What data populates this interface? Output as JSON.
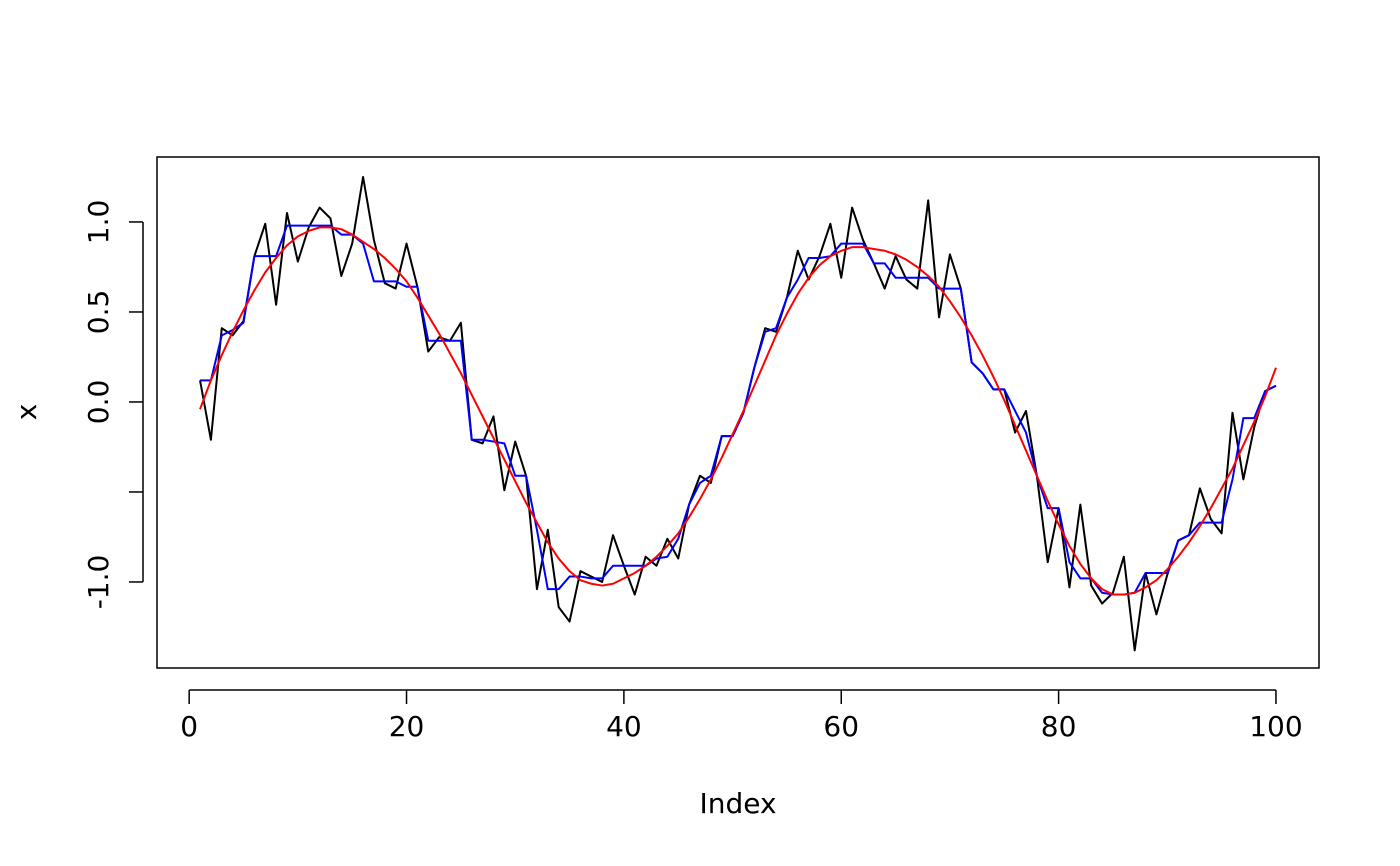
{
  "chart_data": {
    "type": "line",
    "xlabel": "Index",
    "ylabel": "x",
    "x": [
      1,
      2,
      3,
      4,
      5,
      6,
      7,
      8,
      9,
      10,
      11,
      12,
      13,
      14,
      15,
      16,
      17,
      18,
      19,
      20,
      21,
      22,
      23,
      24,
      25,
      26,
      27,
      28,
      29,
      30,
      31,
      32,
      33,
      34,
      35,
      36,
      37,
      38,
      39,
      40,
      41,
      42,
      43,
      44,
      45,
      46,
      47,
      48,
      49,
      50,
      51,
      52,
      53,
      54,
      55,
      56,
      57,
      58,
      59,
      60,
      61,
      62,
      63,
      64,
      65,
      66,
      67,
      68,
      69,
      70,
      71,
      72,
      73,
      74,
      75,
      76,
      77,
      78,
      79,
      80,
      81,
      82,
      83,
      84,
      85,
      86,
      87,
      88,
      89,
      90,
      91,
      92,
      93,
      94,
      95,
      96,
      97,
      98,
      99,
      100
    ],
    "series": [
      {
        "color": "#000000",
        "values": [
          0.12,
          -0.21,
          0.41,
          0.37,
          0.45,
          0.81,
          0.99,
          0.54,
          1.05,
          0.78,
          0.97,
          1.08,
          1.02,
          0.7,
          0.88,
          1.25,
          0.9,
          0.66,
          0.63,
          0.88,
          0.64,
          0.28,
          0.36,
          0.34,
          0.44,
          -0.21,
          -0.23,
          -0.08,
          -0.49,
          -0.22,
          -0.41,
          -1.04,
          -0.71,
          -1.14,
          -1.22,
          -0.94,
          -0.97,
          -1.0,
          -0.74,
          -0.91,
          -1.07,
          -0.86,
          -0.91,
          -0.76,
          -0.87,
          -0.57,
          -0.41,
          -0.45,
          -0.19,
          -0.19,
          -0.06,
          0.19,
          0.41,
          0.39,
          0.58,
          0.84,
          0.68,
          0.81,
          0.99,
          0.69,
          1.08,
          0.9,
          0.77,
          0.63,
          0.81,
          0.68,
          0.63,
          1.12,
          0.47,
          0.82,
          0.63,
          0.22,
          0.16,
          0.07,
          0.07,
          -0.17,
          -0.05,
          -0.41,
          -0.89,
          -0.59,
          -1.03,
          -0.57,
          -1.02,
          -1.12,
          -1.06,
          -0.86,
          -1.38,
          -0.95,
          -1.18,
          -0.96,
          -0.77,
          -0.74,
          -0.48,
          -0.65,
          -0.73,
          -0.06,
          -0.43,
          -0.14,
          0.06,
          0.09
        ]
      },
      {
        "color": "#0000ff",
        "values": [
          0.12,
          0.12,
          0.37,
          0.4,
          0.44,
          0.81,
          0.81,
          0.81,
          0.98,
          0.98,
          0.98,
          0.98,
          0.98,
          0.93,
          0.93,
          0.88,
          0.67,
          0.67,
          0.67,
          0.64,
          0.64,
          0.34,
          0.34,
          0.34,
          0.34,
          -0.21,
          -0.21,
          -0.22,
          -0.23,
          -0.41,
          -0.41,
          -0.71,
          -1.04,
          -1.04,
          -0.97,
          -0.97,
          -0.98,
          -0.98,
          -0.91,
          -0.91,
          -0.91,
          -0.91,
          -0.87,
          -0.86,
          -0.76,
          -0.57,
          -0.45,
          -0.41,
          -0.19,
          -0.19,
          -0.06,
          0.19,
          0.39,
          0.41,
          0.58,
          0.68,
          0.8,
          0.8,
          0.81,
          0.88,
          0.88,
          0.88,
          0.77,
          0.77,
          0.69,
          0.69,
          0.69,
          0.69,
          0.63,
          0.63,
          0.63,
          0.22,
          0.16,
          0.07,
          0.07,
          -0.05,
          -0.17,
          -0.41,
          -0.59,
          -0.59,
          -0.89,
          -0.98,
          -0.98,
          -1.06,
          -1.07,
          -1.07,
          -1.06,
          -0.95,
          -0.95,
          -0.95,
          -0.77,
          -0.74,
          -0.67,
          -0.67,
          -0.67,
          -0.43,
          -0.09,
          -0.09,
          0.06,
          0.09
        ]
      },
      {
        "color": "#ff0000",
        "values": [
          -0.04,
          0.12,
          0.26,
          0.39,
          0.51,
          0.62,
          0.72,
          0.8,
          0.87,
          0.92,
          0.95,
          0.97,
          0.97,
          0.96,
          0.93,
          0.89,
          0.85,
          0.8,
          0.74,
          0.67,
          0.58,
          0.48,
          0.38,
          0.27,
          0.16,
          0.04,
          -0.08,
          -0.2,
          -0.32,
          -0.44,
          -0.56,
          -0.67,
          -0.78,
          -0.87,
          -0.94,
          -0.99,
          -1.01,
          -1.02,
          -1.01,
          -0.98,
          -0.95,
          -0.91,
          -0.86,
          -0.8,
          -0.73,
          -0.64,
          -0.54,
          -0.43,
          -0.31,
          -0.18,
          -0.05,
          0.09,
          0.23,
          0.37,
          0.49,
          0.6,
          0.69,
          0.76,
          0.81,
          0.84,
          0.86,
          0.86,
          0.85,
          0.84,
          0.82,
          0.79,
          0.75,
          0.7,
          0.64,
          0.56,
          0.47,
          0.37,
          0.26,
          0.14,
          0.01,
          -0.13,
          -0.27,
          -0.41,
          -0.55,
          -0.68,
          -0.8,
          -0.9,
          -0.98,
          -1.04,
          -1.07,
          -1.07,
          -1.06,
          -1.03,
          -0.99,
          -0.93,
          -0.86,
          -0.78,
          -0.69,
          -0.59,
          -0.48,
          -0.37,
          -0.24,
          -0.11,
          0.03,
          0.19
        ]
      }
    ],
    "xlim": [
      -2.96,
      103.96
    ],
    "ylim": [
      -1.478,
      1.361
    ],
    "xticks": [
      0,
      20,
      40,
      60,
      80,
      100
    ],
    "yticks": [
      {
        "value": -1,
        "label": "-1.0"
      },
      {
        "value": -0.5,
        "label": null
      },
      {
        "value": 0,
        "label": "0.0"
      },
      0.5,
      {
        "value": 1,
        "label": "1.0"
      }
    ]
  }
}
